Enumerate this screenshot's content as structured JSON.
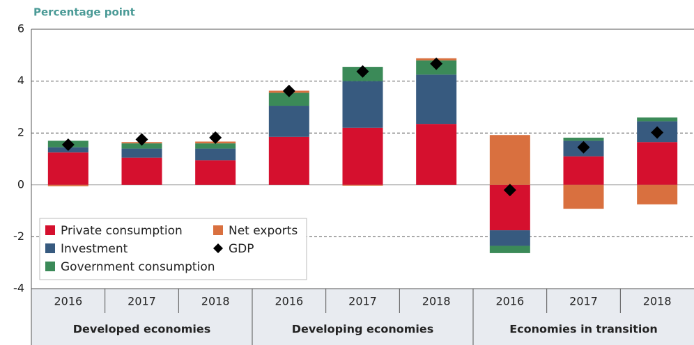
{
  "chart_data": {
    "type": "stacked-bar",
    "title": "Percentage point",
    "groups": [
      "Developed economies",
      "Developing economies",
      "Economies in transition"
    ],
    "categories": [
      "2016",
      "2017",
      "2018",
      "2016",
      "2017",
      "2018",
      "2016",
      "2017",
      "2018"
    ],
    "series": [
      {
        "name": "Private consumption",
        "color": "#d5102e",
        "values": [
          1.25,
          1.05,
          0.95,
          1.85,
          2.2,
          2.35,
          -1.75,
          1.1,
          1.65
        ]
      },
      {
        "name": "Investment",
        "color": "#375a7f",
        "values": [
          0.2,
          0.35,
          0.45,
          1.2,
          1.8,
          1.9,
          -0.6,
          0.6,
          0.8
        ]
      },
      {
        "name": "Government consumption",
        "color": "#3b8a58",
        "values": [
          0.25,
          0.2,
          0.2,
          0.5,
          0.55,
          0.55,
          -0.28,
          0.12,
          0.15
        ]
      },
      {
        "name": "Net exports",
        "color": "#d9703f",
        "values": [
          -0.05,
          0.05,
          0.07,
          0.08,
          -0.03,
          0.08,
          1.92,
          -0.92,
          -0.75
        ]
      }
    ],
    "gdp": {
      "name": "GDP",
      "color": "#000000",
      "values": [
        1.55,
        1.75,
        1.82,
        3.62,
        4.37,
        4.67,
        -0.2,
        1.45,
        2.02
      ]
    },
    "ylim": [
      -4,
      6
    ],
    "yticks": [
      -4,
      -2,
      0,
      2,
      4,
      6
    ],
    "grid": true,
    "legend": "lower left"
  }
}
